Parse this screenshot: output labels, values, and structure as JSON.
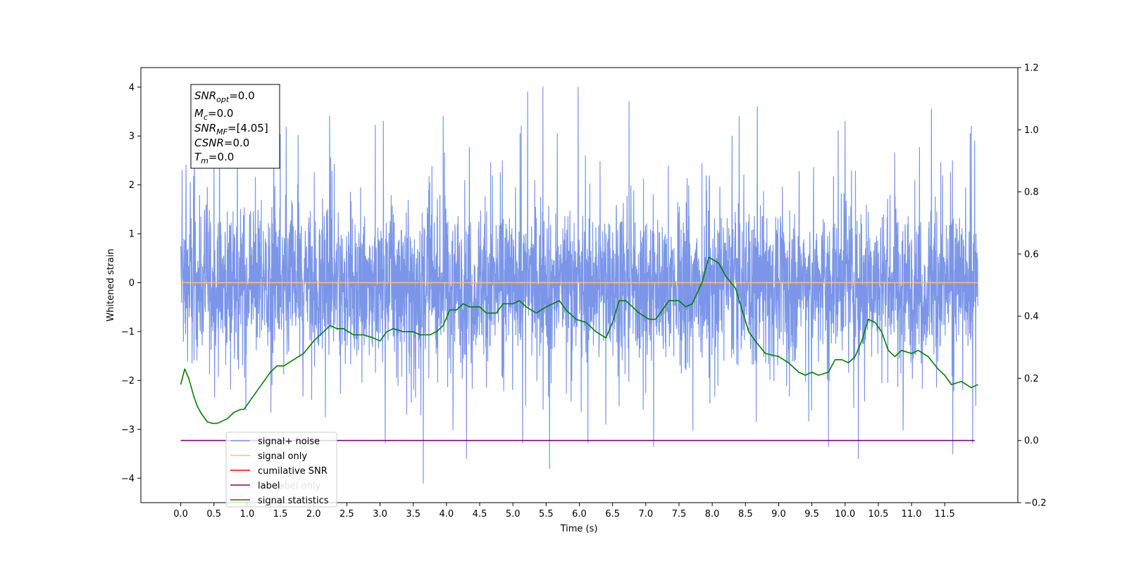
{
  "chart_data": {
    "type": "line",
    "xlabel": "Time (s)",
    "ylabel": "Whitened strain",
    "xlim": [
      -0.6,
      12.6
    ],
    "ylim": [
      -4.5,
      4.4
    ],
    "y2lim": [
      -0.2,
      1.2
    ],
    "x_ticks": [
      "0.0",
      "0.5",
      "1.0",
      "1.5",
      "2.0",
      "2.5",
      "3.0",
      "3.5",
      "4.0",
      "4.5",
      "5.0",
      "5.5",
      "6.0",
      "6.5",
      "7.0",
      "7.5",
      "8.0",
      "8.5",
      "9.0",
      "9.5",
      "10.0",
      "10.5",
      "11.0",
      "11.5"
    ],
    "y_ticks": [
      "4",
      "3",
      "2",
      "1",
      "0",
      "-1",
      "-2",
      "-3",
      "-4"
    ],
    "y2_ticks": [
      "1.2",
      "1.0",
      "0.8",
      "0.6",
      "0.4",
      "0.2",
      "0.0",
      "-0.2"
    ],
    "legend_position": "lower left",
    "annotation": {
      "snr_opt": "=0.0",
      "mc": "=0.0",
      "snr_mf": "=[4.05]",
      "csnr": "=0.0",
      "tm": "=0.0"
    },
    "series": [
      {
        "name": "signal+ noise",
        "color": "#7b96e8",
        "duration": 12.0,
        "range_hint": [
          -4.1,
          4.0
        ],
        "spikes": [
          [
            0.02,
            2.3
          ],
          [
            0.08,
            2.4
          ],
          [
            0.5,
            2.7
          ],
          [
            1.4,
            3.2
          ],
          [
            3.05,
            3.3
          ],
          [
            3.65,
            -4.1
          ],
          [
            3.95,
            3.4
          ],
          [
            4.3,
            -3.6
          ],
          [
            5.22,
            3.9
          ],
          [
            5.45,
            4.0
          ],
          [
            5.55,
            -3.8
          ],
          [
            5.98,
            4.0
          ],
          [
            6.75,
            3.7
          ],
          [
            7.12,
            -3.35
          ],
          [
            8.3,
            3.0
          ],
          [
            8.68,
            3.6
          ],
          [
            9.75,
            -3.35
          ],
          [
            10.0,
            3.3
          ],
          [
            10.2,
            -3.6
          ],
          [
            11.3,
            3.55
          ],
          [
            11.62,
            -3.5
          ],
          [
            11.95,
            2.9
          ]
        ]
      },
      {
        "name": "signal only",
        "color": "#ffbf66",
        "values": [
          [
            0,
            0.0
          ],
          [
            12.0,
            0.0
          ]
        ]
      },
      {
        "name": "cumilative SNR",
        "color": "#ff0000",
        "values": []
      },
      {
        "name": "label",
        "color": "#800080",
        "axis": "right",
        "values": [
          [
            0,
            0.0
          ],
          [
            11.95,
            0.0
          ]
        ]
      },
      {
        "name": "label only",
        "color": "#000000",
        "values": []
      },
      {
        "name": "signal statistics",
        "color": "#008000",
        "axis": "right",
        "values": [
          [
            0.0,
            0.18
          ],
          [
            0.06,
            0.23
          ],
          [
            0.12,
            0.2
          ],
          [
            0.2,
            0.14
          ],
          [
            0.25,
            0.11
          ],
          [
            0.3,
            0.09
          ],
          [
            0.4,
            0.06
          ],
          [
            0.48,
            0.055
          ],
          [
            0.55,
            0.055
          ],
          [
            0.7,
            0.07
          ],
          [
            0.8,
            0.09
          ],
          [
            0.9,
            0.1
          ],
          [
            0.95,
            0.1
          ],
          [
            1.05,
            0.13
          ],
          [
            1.15,
            0.16
          ],
          [
            1.25,
            0.19
          ],
          [
            1.35,
            0.22
          ],
          [
            1.45,
            0.24
          ],
          [
            1.55,
            0.24
          ],
          [
            1.7,
            0.26
          ],
          [
            1.85,
            0.28
          ],
          [
            2.0,
            0.32
          ],
          [
            2.15,
            0.35
          ],
          [
            2.25,
            0.37
          ],
          [
            2.35,
            0.36
          ],
          [
            2.45,
            0.36
          ],
          [
            2.6,
            0.34
          ],
          [
            2.75,
            0.34
          ],
          [
            2.9,
            0.33
          ],
          [
            3.0,
            0.32
          ],
          [
            3.1,
            0.35
          ],
          [
            3.2,
            0.36
          ],
          [
            3.35,
            0.35
          ],
          [
            3.5,
            0.35
          ],
          [
            3.6,
            0.34
          ],
          [
            3.75,
            0.34
          ],
          [
            3.85,
            0.35
          ],
          [
            3.95,
            0.37
          ],
          [
            4.05,
            0.42
          ],
          [
            4.15,
            0.42
          ],
          [
            4.25,
            0.44
          ],
          [
            4.35,
            0.43
          ],
          [
            4.5,
            0.43
          ],
          [
            4.6,
            0.41
          ],
          [
            4.75,
            0.41
          ],
          [
            4.85,
            0.44
          ],
          [
            5.0,
            0.44
          ],
          [
            5.1,
            0.45
          ],
          [
            5.2,
            0.43
          ],
          [
            5.35,
            0.41
          ],
          [
            5.5,
            0.43
          ],
          [
            5.6,
            0.44
          ],
          [
            5.7,
            0.45
          ],
          [
            5.8,
            0.42
          ],
          [
            5.95,
            0.39
          ],
          [
            6.1,
            0.38
          ],
          [
            6.25,
            0.35
          ],
          [
            6.4,
            0.33
          ],
          [
            6.5,
            0.38
          ],
          [
            6.6,
            0.45
          ],
          [
            6.7,
            0.45
          ],
          [
            6.8,
            0.43
          ],
          [
            6.9,
            0.41
          ],
          [
            7.05,
            0.39
          ],
          [
            7.15,
            0.39
          ],
          [
            7.25,
            0.42
          ],
          [
            7.35,
            0.45
          ],
          [
            7.5,
            0.45
          ],
          [
            7.6,
            0.43
          ],
          [
            7.7,
            0.44
          ],
          [
            7.85,
            0.51
          ],
          [
            7.95,
            0.59
          ],
          [
            8.1,
            0.57
          ],
          [
            8.2,
            0.53
          ],
          [
            8.35,
            0.49
          ],
          [
            8.45,
            0.42
          ],
          [
            8.55,
            0.35
          ],
          [
            8.65,
            0.32
          ],
          [
            8.8,
            0.28
          ],
          [
            9.0,
            0.27
          ],
          [
            9.15,
            0.25
          ],
          [
            9.3,
            0.22
          ],
          [
            9.4,
            0.21
          ],
          [
            9.5,
            0.22
          ],
          [
            9.6,
            0.21
          ],
          [
            9.75,
            0.22
          ],
          [
            9.85,
            0.26
          ],
          [
            9.95,
            0.26
          ],
          [
            10.05,
            0.25
          ],
          [
            10.15,
            0.27
          ],
          [
            10.25,
            0.32
          ],
          [
            10.35,
            0.39
          ],
          [
            10.45,
            0.38
          ],
          [
            10.55,
            0.35
          ],
          [
            10.65,
            0.29
          ],
          [
            10.75,
            0.27
          ],
          [
            10.85,
            0.29
          ],
          [
            11.0,
            0.28
          ],
          [
            11.1,
            0.29
          ],
          [
            11.25,
            0.27
          ],
          [
            11.4,
            0.23
          ],
          [
            11.5,
            0.21
          ],
          [
            11.6,
            0.18
          ],
          [
            11.75,
            0.19
          ],
          [
            11.9,
            0.17
          ],
          [
            12.0,
            0.18
          ]
        ]
      }
    ]
  }
}
